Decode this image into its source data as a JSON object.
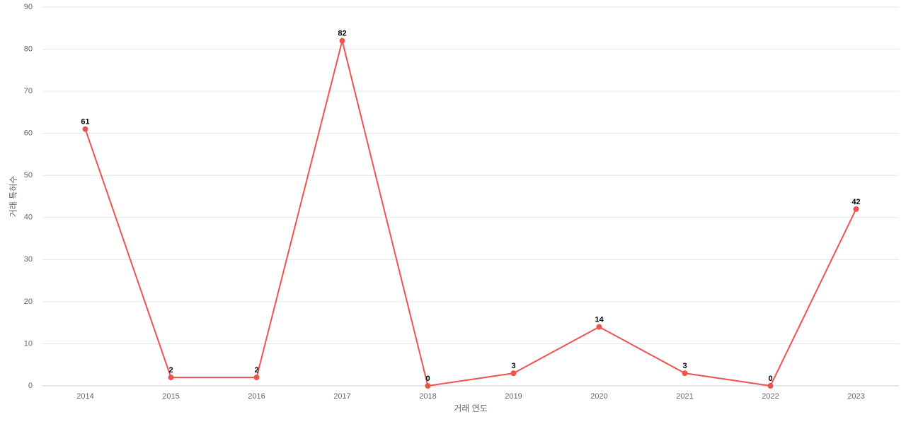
{
  "chart_data": {
    "type": "line",
    "x_label": "거래 연도",
    "y_label": "거래 특허수",
    "categories": [
      "2014",
      "2015",
      "2016",
      "2017",
      "2018",
      "2019",
      "2020",
      "2021",
      "2022",
      "2023"
    ],
    "series": [
      {
        "name": "거래 특허수",
        "color": "#ef5350",
        "values": [
          61,
          2,
          2,
          82,
          0,
          3,
          14,
          3,
          0,
          42
        ]
      }
    ],
    "ylim": [
      0,
      90
    ],
    "yticks": [
      0,
      10,
      20,
      30,
      40,
      50,
      60,
      70,
      80,
      90
    ],
    "grid": true,
    "data_labels": true
  }
}
